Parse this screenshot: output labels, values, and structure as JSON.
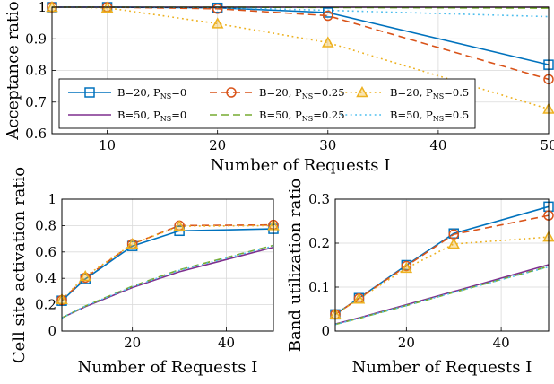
{
  "figure": {
    "legend_entries": [
      {
        "label": "B=20, P",
        "sub": "NS",
        "suffix": "=0",
        "color": "#0072bd",
        "dash": "solid",
        "marker": "square"
      },
      {
        "label": "B=20, P",
        "sub": "NS",
        "suffix": "=0.25",
        "color": "#d95319",
        "dash": "dashed",
        "marker": "circle"
      },
      {
        "label": "B=20, P",
        "sub": "NS",
        "suffix": "=0.5",
        "color": "#edb120",
        "dash": "dotted",
        "marker": "triangle"
      },
      {
        "label": "B=50, P",
        "sub": "NS",
        "suffix": "=0",
        "color": "#7e2f8e",
        "dash": "solid",
        "marker": "none"
      },
      {
        "label": "B=50, P",
        "sub": "NS",
        "suffix": "=0.25",
        "color": "#77ac30",
        "dash": "dashed",
        "marker": "none"
      },
      {
        "label": "B=50, P",
        "sub": "NS",
        "suffix": "=0.5",
        "color": "#4dbeee",
        "dash": "dotted",
        "marker": "none"
      }
    ]
  },
  "chart_data": [
    {
      "type": "line",
      "id": "acceptance",
      "xlabel": "Number of Requests I",
      "ylabel": "Acceptance ratio",
      "xlim": [
        5,
        50
      ],
      "ylim": [
        0.6,
        1.0
      ],
      "xticks": [
        10,
        20,
        30,
        40,
        50
      ],
      "yticks": [
        0.6,
        0.7,
        0.8,
        0.9,
        1.0
      ],
      "ytick_labels": [
        "0.6",
        "0.7",
        "0.8",
        "0.9",
        "1"
      ],
      "grid": true,
      "legend": "inside",
      "x": [
        5,
        10,
        20,
        30,
        50
      ],
      "series": [
        {
          "name": "B=20, P_NS=0",
          "values": [
            1.0,
            1.0,
            0.998,
            0.983,
            0.818
          ]
        },
        {
          "name": "B=20, P_NS=0.25",
          "values": [
            1.0,
            1.0,
            0.995,
            0.973,
            0.772
          ]
        },
        {
          "name": "B=20, P_NS=0.5",
          "values": [
            1.0,
            0.998,
            0.948,
            0.888,
            0.678
          ]
        },
        {
          "name": "B=50, P_NS=0",
          "values": [
            1.0,
            1.0,
            1.0,
            1.0,
            1.0
          ]
        },
        {
          "name": "B=50, P_NS=0.25",
          "values": [
            1.0,
            1.0,
            1.0,
            0.999,
            0.997
          ]
        },
        {
          "name": "B=50, P_NS=0.5",
          "values": [
            1.0,
            1.0,
            0.999,
            0.99,
            0.97
          ]
        }
      ]
    },
    {
      "type": "line",
      "id": "cell-site",
      "xlabel": "Number of Requests I",
      "ylabel": "Cell site activation ratio",
      "xlim": [
        5,
        50
      ],
      "ylim": [
        0,
        1.0
      ],
      "xticks": [
        20,
        40
      ],
      "yticks": [
        0,
        0.2,
        0.4,
        0.6,
        0.8,
        1.0
      ],
      "ytick_labels": [
        "0",
        "0.2",
        "0.4",
        "0.6",
        "0.8",
        "1"
      ],
      "grid": true,
      "x": [
        5,
        10,
        20,
        30,
        50
      ],
      "series": [
        {
          "name": "B=20, P_NS=0",
          "values": [
            0.23,
            0.395,
            0.645,
            0.76,
            0.775
          ]
        },
        {
          "name": "B=20, P_NS=0.25",
          "values": [
            0.235,
            0.405,
            0.66,
            0.8,
            0.805
          ]
        },
        {
          "name": "B=20, P_NS=0.5",
          "values": [
            0.24,
            0.415,
            0.66,
            0.795,
            0.8
          ]
        },
        {
          "name": "B=50, P_NS=0",
          "values": [
            0.1,
            0.185,
            0.33,
            0.45,
            0.635
          ]
        },
        {
          "name": "B=50, P_NS=0.25",
          "values": [
            0.1,
            0.19,
            0.34,
            0.465,
            0.65
          ]
        },
        {
          "name": "B=50, P_NS=0.5",
          "values": [
            0.1,
            0.19,
            0.335,
            0.46,
            0.645
          ]
        }
      ]
    },
    {
      "type": "line",
      "id": "band",
      "xlabel": "Number of Requests I",
      "ylabel": "Band utilization ratio",
      "xlim": [
        5,
        50
      ],
      "ylim": [
        0,
        0.3
      ],
      "xticks": [
        20,
        40
      ],
      "yticks": [
        0,
        0.1,
        0.2,
        0.3
      ],
      "ytick_labels": [
        "0",
        "0.1",
        "0.2",
        "0.3"
      ],
      "grid": true,
      "x": [
        5,
        10,
        20,
        30,
        50
      ],
      "series": [
        {
          "name": "B=20, P_NS=0",
          "values": [
            0.038,
            0.075,
            0.15,
            0.222,
            0.283
          ]
        },
        {
          "name": "B=20, P_NS=0.25",
          "values": [
            0.038,
            0.074,
            0.148,
            0.22,
            0.263
          ]
        },
        {
          "name": "B=20, P_NS=0.5",
          "values": [
            0.038,
            0.073,
            0.143,
            0.198,
            0.214
          ]
        },
        {
          "name": "B=50, P_NS=0",
          "values": [
            0.016,
            0.03,
            0.06,
            0.09,
            0.151
          ]
        },
        {
          "name": "B=50, P_NS=0.25",
          "values": [
            0.015,
            0.029,
            0.058,
            0.088,
            0.147
          ]
        },
        {
          "name": "B=50, P_NS=0.5",
          "values": [
            0.015,
            0.029,
            0.058,
            0.088,
            0.146
          ]
        }
      ]
    }
  ]
}
